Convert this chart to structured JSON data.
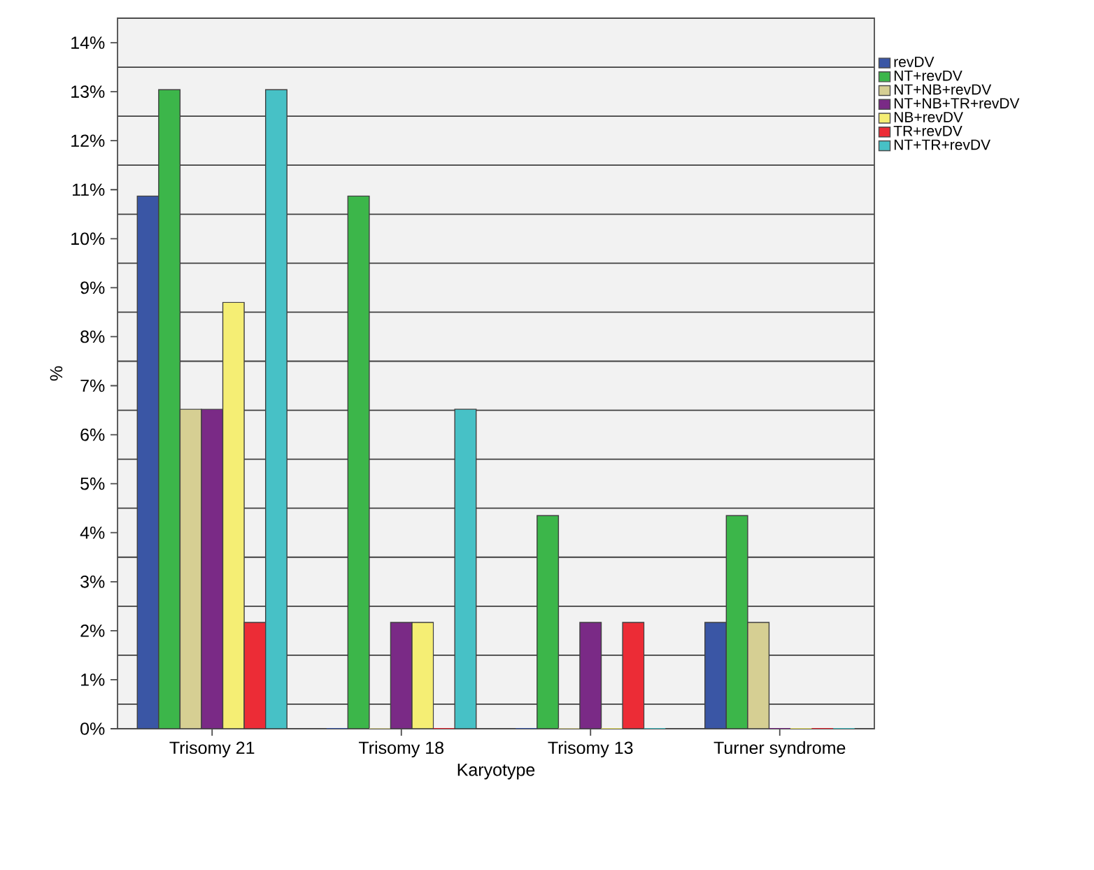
{
  "chart_data": {
    "type": "bar",
    "xlabel": "Karyotype",
    "ylabel": "%",
    "categories": [
      "Trisomy 21",
      "Trisomy 18",
      "Trisomy 13",
      "Turner syndrome"
    ],
    "series": [
      {
        "name": "revDV",
        "color": "#3a56a5",
        "values": [
          10.87,
          0,
          0,
          2.17
        ]
      },
      {
        "name": "NT+revDV",
        "color": "#3cb64a",
        "values": [
          13.04,
          10.87,
          4.35,
          4.35
        ]
      },
      {
        "name": "NT+NB+revDV",
        "color": "#d6cf93",
        "values": [
          6.52,
          0,
          0,
          2.17
        ]
      },
      {
        "name": "NT+NB+TR+revDV",
        "color": "#7a2a86",
        "values": [
          6.52,
          2.17,
          2.17,
          0
        ]
      },
      {
        "name": "NB+revDV",
        "color": "#f5ee74",
        "values": [
          8.7,
          2.17,
          0,
          0
        ]
      },
      {
        "name": "TR+revDV",
        "color": "#ec2c36",
        "values": [
          2.17,
          0,
          2.17,
          0
        ]
      },
      {
        "name": "NT+TR+revDV",
        "color": "#47c1c6",
        "values": [
          13.04,
          6.52,
          0,
          0
        ]
      }
    ],
    "ylim": [
      0,
      14.5
    ],
    "yticks": [
      {
        "value": 0,
        "label": "0%"
      },
      {
        "value": 1,
        "label": "1%"
      },
      {
        "value": 2,
        "label": "2%"
      },
      {
        "value": 3,
        "label": "3%"
      },
      {
        "value": 4,
        "label": "4%"
      },
      {
        "value": 5,
        "label": "5%"
      },
      {
        "value": 6,
        "label": "6%"
      },
      {
        "value": 7,
        "label": "7%"
      },
      {
        "value": 8,
        "label": "8%"
      },
      {
        "value": 9,
        "label": "9%"
      },
      {
        "value": 10,
        "label": "10%"
      },
      {
        "value": 11,
        "label": "11%"
      },
      {
        "value": 12,
        "label": "12%"
      },
      {
        "value": 13,
        "label": "13%"
      },
      {
        "value": 14,
        "label": "14%"
      }
    ],
    "grid": "y",
    "legend": "top right"
  }
}
